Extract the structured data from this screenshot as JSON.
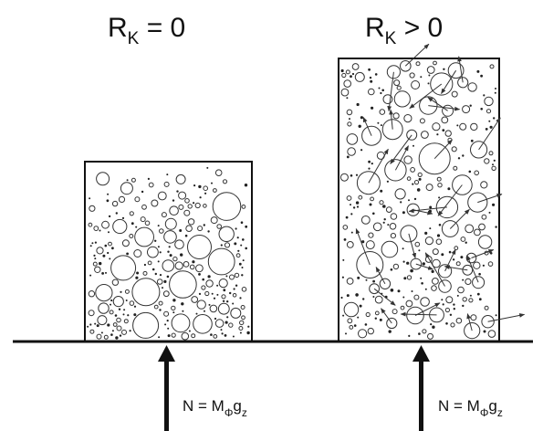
{
  "left_panel": {
    "heading": {
      "main": "R",
      "sub": "K",
      "rest": " = 0"
    },
    "force": {
      "main": "N = M",
      "sub1": "Φ",
      "mid": "g",
      "sub2": "z"
    }
  },
  "right_panel": {
    "heading": {
      "main": "R",
      "sub": "K",
      "rest": " > 0"
    },
    "force": {
      "main": "N = M",
      "sub1": "Φ",
      "mid": "g",
      "sub2": "z"
    }
  },
  "colors": {
    "ink": "#111111",
    "background": "#ffffff"
  }
}
